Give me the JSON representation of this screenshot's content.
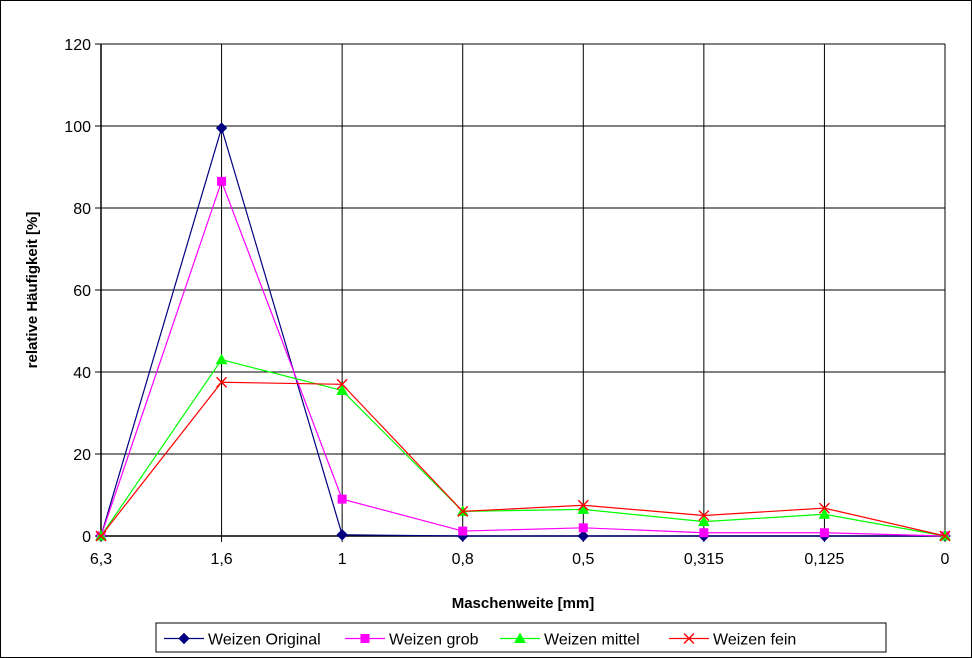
{
  "chart_data": {
    "type": "line",
    "title": "",
    "xlabel": "Maschenweite [mm]",
    "ylabel": "relative Häufigkeit [%]",
    "categories": [
      "6,3",
      "1,6",
      "1",
      "0,8",
      "0,5",
      "0,315",
      "0,125",
      "0"
    ],
    "ylim": [
      0,
      120
    ],
    "yticks": [
      0,
      20,
      40,
      60,
      80,
      100,
      120
    ],
    "grid": true,
    "legend_position": "bottom",
    "series": [
      {
        "name": "Weizen Original",
        "color": "#000080",
        "marker": "diamond",
        "values": [
          0,
          99.5,
          0.3,
          0,
          0,
          0,
          0,
          0
        ]
      },
      {
        "name": "Weizen grob",
        "color": "#FF00FF",
        "marker": "square",
        "values": [
          0,
          86.5,
          9,
          1.2,
          2,
          0.8,
          0.8,
          0
        ]
      },
      {
        "name": "Weizen mittel",
        "color": "#00FF00",
        "marker": "triangle",
        "values": [
          0,
          43,
          35.5,
          6,
          6.5,
          3.5,
          5.3,
          0
        ]
      },
      {
        "name": "Weizen fein",
        "color": "#FF0000",
        "marker": "x",
        "values": [
          0,
          37.5,
          37,
          6,
          7.5,
          5,
          6.8,
          0
        ]
      }
    ]
  }
}
